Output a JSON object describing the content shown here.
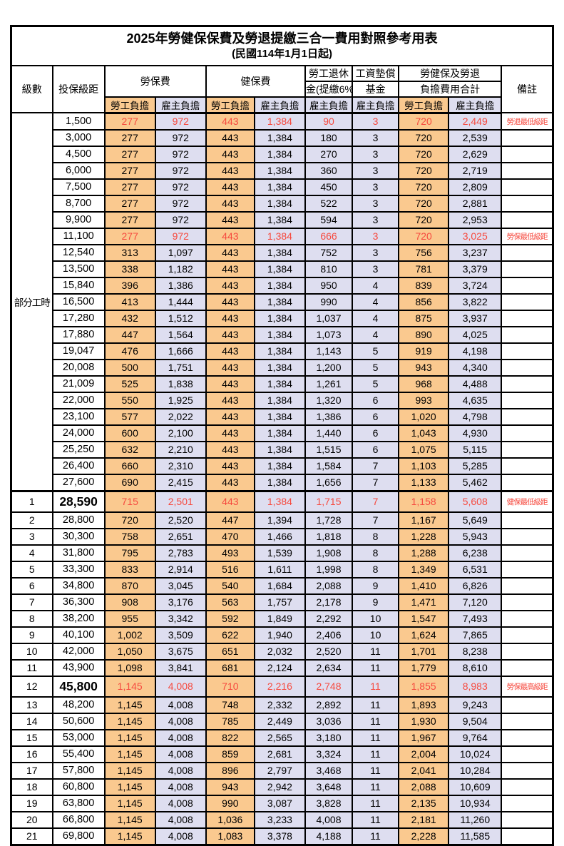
{
  "title": "2025年勞健保保費及勞退提繳三合一費用對照參考用表",
  "subtitle": "(民國114年1月1日起)",
  "header": {
    "level": "級數",
    "bracket": "投保級距",
    "labor_fee": "勞保費",
    "health_fee": "健保費",
    "pension_line1": "勞工退休",
    "pension_line2": "金(提繳6%)",
    "wage_fund_line1": "工資墊償",
    "wage_fund_line2": "基金",
    "total_line1": "勞健保及勞退",
    "total_line2": "負擔費用合計",
    "note": "備註",
    "employee_burden": "勞工負擔",
    "employer_burden": "雇主負擔"
  },
  "part_time_label": "部分工時",
  "colors": {
    "employee_bg": "#fac98f",
    "employer_bg": "#dedef0",
    "highlight_red": "#f64a3f",
    "border": "#000000"
  },
  "table": {
    "rows": [
      {
        "level": "",
        "bracket": "1,500",
        "values": [
          "277",
          "972",
          "443",
          "1,384",
          "90",
          "3",
          "720",
          "2,449"
        ],
        "note": "勞退最低級距",
        "highlight": true,
        "emphasis": false,
        "section_start": false
      },
      {
        "level": "",
        "bracket": "3,000",
        "values": [
          "277",
          "972",
          "443",
          "1,384",
          "180",
          "3",
          "720",
          "2,539"
        ],
        "note": "",
        "highlight": false,
        "emphasis": false,
        "section_start": false
      },
      {
        "level": "",
        "bracket": "4,500",
        "values": [
          "277",
          "972",
          "443",
          "1,384",
          "270",
          "3",
          "720",
          "2,629"
        ],
        "note": "",
        "highlight": false,
        "emphasis": false,
        "section_start": false
      },
      {
        "level": "",
        "bracket": "6,000",
        "values": [
          "277",
          "972",
          "443",
          "1,384",
          "360",
          "3",
          "720",
          "2,719"
        ],
        "note": "",
        "highlight": false,
        "emphasis": false,
        "section_start": false
      },
      {
        "level": "",
        "bracket": "7,500",
        "values": [
          "277",
          "972",
          "443",
          "1,384",
          "450",
          "3",
          "720",
          "2,809"
        ],
        "note": "",
        "highlight": false,
        "emphasis": false,
        "section_start": false
      },
      {
        "level": "",
        "bracket": "8,700",
        "values": [
          "277",
          "972",
          "443",
          "1,384",
          "522",
          "3",
          "720",
          "2,881"
        ],
        "note": "",
        "highlight": false,
        "emphasis": false,
        "section_start": false
      },
      {
        "level": "",
        "bracket": "9,900",
        "values": [
          "277",
          "972",
          "443",
          "1,384",
          "594",
          "3",
          "720",
          "2,953"
        ],
        "note": "",
        "highlight": false,
        "emphasis": false,
        "section_start": false
      },
      {
        "level": "",
        "bracket": "11,100",
        "values": [
          "277",
          "972",
          "443",
          "1,384",
          "666",
          "3",
          "720",
          "3,025"
        ],
        "note": "勞保最低級距",
        "highlight": true,
        "emphasis": false,
        "section_start": false
      },
      {
        "level": "",
        "bracket": "12,540",
        "values": [
          "313",
          "1,097",
          "443",
          "1,384",
          "752",
          "3",
          "756",
          "3,237"
        ],
        "note": "",
        "highlight": false,
        "emphasis": false,
        "section_start": false
      },
      {
        "level": "",
        "bracket": "13,500",
        "values": [
          "338",
          "1,182",
          "443",
          "1,384",
          "810",
          "3",
          "781",
          "3,379"
        ],
        "note": "",
        "highlight": false,
        "emphasis": false,
        "section_start": false
      },
      {
        "level": "",
        "bracket": "15,840",
        "values": [
          "396",
          "1,386",
          "443",
          "1,384",
          "950",
          "4",
          "839",
          "3,724"
        ],
        "note": "",
        "highlight": false,
        "emphasis": false,
        "section_start": false
      },
      {
        "level": "",
        "bracket": "16,500",
        "values": [
          "413",
          "1,444",
          "443",
          "1,384",
          "990",
          "4",
          "856",
          "3,822"
        ],
        "note": "",
        "highlight": false,
        "emphasis": false,
        "section_start": false
      },
      {
        "level": "",
        "bracket": "17,280",
        "values": [
          "432",
          "1,512",
          "443",
          "1,384",
          "1,037",
          "4",
          "875",
          "3,937"
        ],
        "note": "",
        "highlight": false,
        "emphasis": false,
        "section_start": false
      },
      {
        "level": "",
        "bracket": "17,880",
        "values": [
          "447",
          "1,564",
          "443",
          "1,384",
          "1,073",
          "4",
          "890",
          "4,025"
        ],
        "note": "",
        "highlight": false,
        "emphasis": false,
        "section_start": false
      },
      {
        "level": "",
        "bracket": "19,047",
        "values": [
          "476",
          "1,666",
          "443",
          "1,384",
          "1,143",
          "5",
          "919",
          "4,198"
        ],
        "note": "",
        "highlight": false,
        "emphasis": false,
        "section_start": false
      },
      {
        "level": "",
        "bracket": "20,008",
        "values": [
          "500",
          "1,751",
          "443",
          "1,384",
          "1,200",
          "5",
          "943",
          "4,340"
        ],
        "note": "",
        "highlight": false,
        "emphasis": false,
        "section_start": false
      },
      {
        "level": "",
        "bracket": "21,009",
        "values": [
          "525",
          "1,838",
          "443",
          "1,384",
          "1,261",
          "5",
          "968",
          "4,488"
        ],
        "note": "",
        "highlight": false,
        "emphasis": false,
        "section_start": false
      },
      {
        "level": "",
        "bracket": "22,000",
        "values": [
          "550",
          "1,925",
          "443",
          "1,384",
          "1,320",
          "6",
          "993",
          "4,635"
        ],
        "note": "",
        "highlight": false,
        "emphasis": false,
        "section_start": false
      },
      {
        "level": "",
        "bracket": "23,100",
        "values": [
          "577",
          "2,022",
          "443",
          "1,384",
          "1,386",
          "6",
          "1,020",
          "4,798"
        ],
        "note": "",
        "highlight": false,
        "emphasis": false,
        "section_start": false
      },
      {
        "level": "",
        "bracket": "24,000",
        "values": [
          "600",
          "2,100",
          "443",
          "1,384",
          "1,440",
          "6",
          "1,043",
          "4,930"
        ],
        "note": "",
        "highlight": false,
        "emphasis": false,
        "section_start": false
      },
      {
        "level": "",
        "bracket": "25,250",
        "values": [
          "632",
          "2,210",
          "443",
          "1,384",
          "1,515",
          "6",
          "1,075",
          "5,115"
        ],
        "note": "",
        "highlight": false,
        "emphasis": false,
        "section_start": false
      },
      {
        "level": "",
        "bracket": "26,400",
        "values": [
          "660",
          "2,310",
          "443",
          "1,384",
          "1,584",
          "7",
          "1,103",
          "5,285"
        ],
        "note": "",
        "highlight": false,
        "emphasis": false,
        "section_start": false
      },
      {
        "level": "",
        "bracket": "27,600",
        "values": [
          "690",
          "2,415",
          "443",
          "1,384",
          "1,656",
          "7",
          "1,133",
          "5,462"
        ],
        "note": "",
        "highlight": false,
        "emphasis": false,
        "section_start": false
      },
      {
        "level": "1",
        "bracket": "28,590",
        "values": [
          "715",
          "2,501",
          "443",
          "1,384",
          "1,715",
          "7",
          "1,158",
          "5,608"
        ],
        "note": "健保最低級距",
        "highlight": true,
        "emphasis": true,
        "section_start": true
      },
      {
        "level": "2",
        "bracket": "28,800",
        "values": [
          "720",
          "2,520",
          "447",
          "1,394",
          "1,728",
          "7",
          "1,167",
          "5,649"
        ],
        "note": "",
        "highlight": false,
        "emphasis": false,
        "section_start": false
      },
      {
        "level": "3",
        "bracket": "30,300",
        "values": [
          "758",
          "2,651",
          "470",
          "1,466",
          "1,818",
          "8",
          "1,228",
          "5,943"
        ],
        "note": "",
        "highlight": false,
        "emphasis": false,
        "section_start": false
      },
      {
        "level": "4",
        "bracket": "31,800",
        "values": [
          "795",
          "2,783",
          "493",
          "1,539",
          "1,908",
          "8",
          "1,288",
          "6,238"
        ],
        "note": "",
        "highlight": false,
        "emphasis": false,
        "section_start": false
      },
      {
        "level": "5",
        "bracket": "33,300",
        "values": [
          "833",
          "2,914",
          "516",
          "1,611",
          "1,998",
          "8",
          "1,349",
          "6,531"
        ],
        "note": "",
        "highlight": false,
        "emphasis": false,
        "section_start": false
      },
      {
        "level": "6",
        "bracket": "34,800",
        "values": [
          "870",
          "3,045",
          "540",
          "1,684",
          "2,088",
          "9",
          "1,410",
          "6,826"
        ],
        "note": "",
        "highlight": false,
        "emphasis": false,
        "section_start": false
      },
      {
        "level": "7",
        "bracket": "36,300",
        "values": [
          "908",
          "3,176",
          "563",
          "1,757",
          "2,178",
          "9",
          "1,471",
          "7,120"
        ],
        "note": "",
        "highlight": false,
        "emphasis": false,
        "section_start": false
      },
      {
        "level": "8",
        "bracket": "38,200",
        "values": [
          "955",
          "3,342",
          "592",
          "1,849",
          "2,292",
          "10",
          "1,547",
          "7,493"
        ],
        "note": "",
        "highlight": false,
        "emphasis": false,
        "section_start": false
      },
      {
        "level": "9",
        "bracket": "40,100",
        "values": [
          "1,002",
          "3,509",
          "622",
          "1,940",
          "2,406",
          "10",
          "1,624",
          "7,865"
        ],
        "note": "",
        "highlight": false,
        "emphasis": false,
        "section_start": false
      },
      {
        "level": "10",
        "bracket": "42,000",
        "values": [
          "1,050",
          "3,675",
          "651",
          "2,032",
          "2,520",
          "11",
          "1,701",
          "8,238"
        ],
        "note": "",
        "highlight": false,
        "emphasis": false,
        "section_start": false
      },
      {
        "level": "11",
        "bracket": "43,900",
        "values": [
          "1,098",
          "3,841",
          "681",
          "2,124",
          "2,634",
          "11",
          "1,779",
          "8,610"
        ],
        "note": "",
        "highlight": false,
        "emphasis": false,
        "section_start": false
      },
      {
        "level": "12",
        "bracket": "45,800",
        "values": [
          "1,145",
          "4,008",
          "710",
          "2,216",
          "2,748",
          "11",
          "1,855",
          "8,983"
        ],
        "note": "勞保最高級距",
        "highlight": true,
        "emphasis": true,
        "section_start": false
      },
      {
        "level": "13",
        "bracket": "48,200",
        "values": [
          "1,145",
          "4,008",
          "748",
          "2,332",
          "2,892",
          "11",
          "1,893",
          "9,243"
        ],
        "note": "",
        "highlight": false,
        "emphasis": false,
        "section_start": false
      },
      {
        "level": "14",
        "bracket": "50,600",
        "values": [
          "1,145",
          "4,008",
          "785",
          "2,449",
          "3,036",
          "11",
          "1,930",
          "9,504"
        ],
        "note": "",
        "highlight": false,
        "emphasis": false,
        "section_start": false
      },
      {
        "level": "15",
        "bracket": "53,000",
        "values": [
          "1,145",
          "4,008",
          "822",
          "2,565",
          "3,180",
          "11",
          "1,967",
          "9,764"
        ],
        "note": "",
        "highlight": false,
        "emphasis": false,
        "section_start": false
      },
      {
        "level": "16",
        "bracket": "55,400",
        "values": [
          "1,145",
          "4,008",
          "859",
          "2,681",
          "3,324",
          "11",
          "2,004",
          "10,024"
        ],
        "note": "",
        "highlight": false,
        "emphasis": false,
        "section_start": false
      },
      {
        "level": "17",
        "bracket": "57,800",
        "values": [
          "1,145",
          "4,008",
          "896",
          "2,797",
          "3,468",
          "11",
          "2,041",
          "10,284"
        ],
        "note": "",
        "highlight": false,
        "emphasis": false,
        "section_start": false
      },
      {
        "level": "18",
        "bracket": "60,800",
        "values": [
          "1,145",
          "4,008",
          "943",
          "2,942",
          "3,648",
          "11",
          "2,088",
          "10,609"
        ],
        "note": "",
        "highlight": false,
        "emphasis": false,
        "section_start": false
      },
      {
        "level": "19",
        "bracket": "63,800",
        "values": [
          "1,145",
          "4,008",
          "990",
          "3,087",
          "3,828",
          "11",
          "2,135",
          "10,934"
        ],
        "note": "",
        "highlight": false,
        "emphasis": false,
        "section_start": false
      },
      {
        "level": "20",
        "bracket": "66,800",
        "values": [
          "1,145",
          "4,008",
          "1,036",
          "3,233",
          "4,008",
          "11",
          "2,181",
          "11,260"
        ],
        "note": "",
        "highlight": false,
        "emphasis": false,
        "section_start": false
      },
      {
        "level": "21",
        "bracket": "69,800",
        "values": [
          "1,145",
          "4,008",
          "1,083",
          "3,378",
          "4,188",
          "11",
          "2,228",
          "11,585"
        ],
        "note": "",
        "highlight": false,
        "emphasis": false,
        "section_start": false
      }
    ]
  }
}
